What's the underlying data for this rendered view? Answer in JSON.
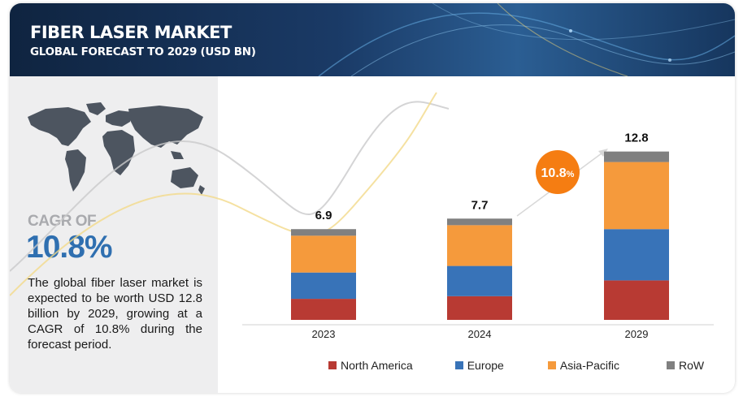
{
  "header": {
    "title": "FIBER LASER MARKET",
    "subtitle": "GLOBAL FORECAST TO 2029 (USD BN)"
  },
  "left_panel": {
    "map_icon": "world-map-icon",
    "cagr_label": "CAGR OF",
    "cagr_value": "10.8%",
    "description": "The global fiber laser market is expected to be worth USD 12.8 billion by 2029, growing at a CAGR of 10.8% during the forecast period."
  },
  "chart_data": {
    "type": "bar",
    "stacked": true,
    "categories": [
      "2023",
      "2024",
      "2029"
    ],
    "totals": [
      "6.9",
      "7.7",
      "12.8"
    ],
    "series": [
      {
        "name": "North America",
        "color": "#b83a33",
        "values": [
          1.6,
          1.8,
          3.0
        ]
      },
      {
        "name": "Europe",
        "color": "#3873b8",
        "values": [
          2.0,
          2.3,
          3.9
        ]
      },
      {
        "name": "Asia-Pacific",
        "color": "#f59a3c",
        "values": [
          2.8,
          3.1,
          5.1
        ]
      },
      {
        "name": "RoW",
        "color": "#808080",
        "values": [
          0.5,
          0.5,
          0.8
        ]
      }
    ],
    "ylim": [
      0,
      14
    ],
    "grid": false,
    "legend_position": "bottom",
    "annotation": {
      "label": "10.8",
      "suffix": "%",
      "color": "#f57d12"
    }
  }
}
